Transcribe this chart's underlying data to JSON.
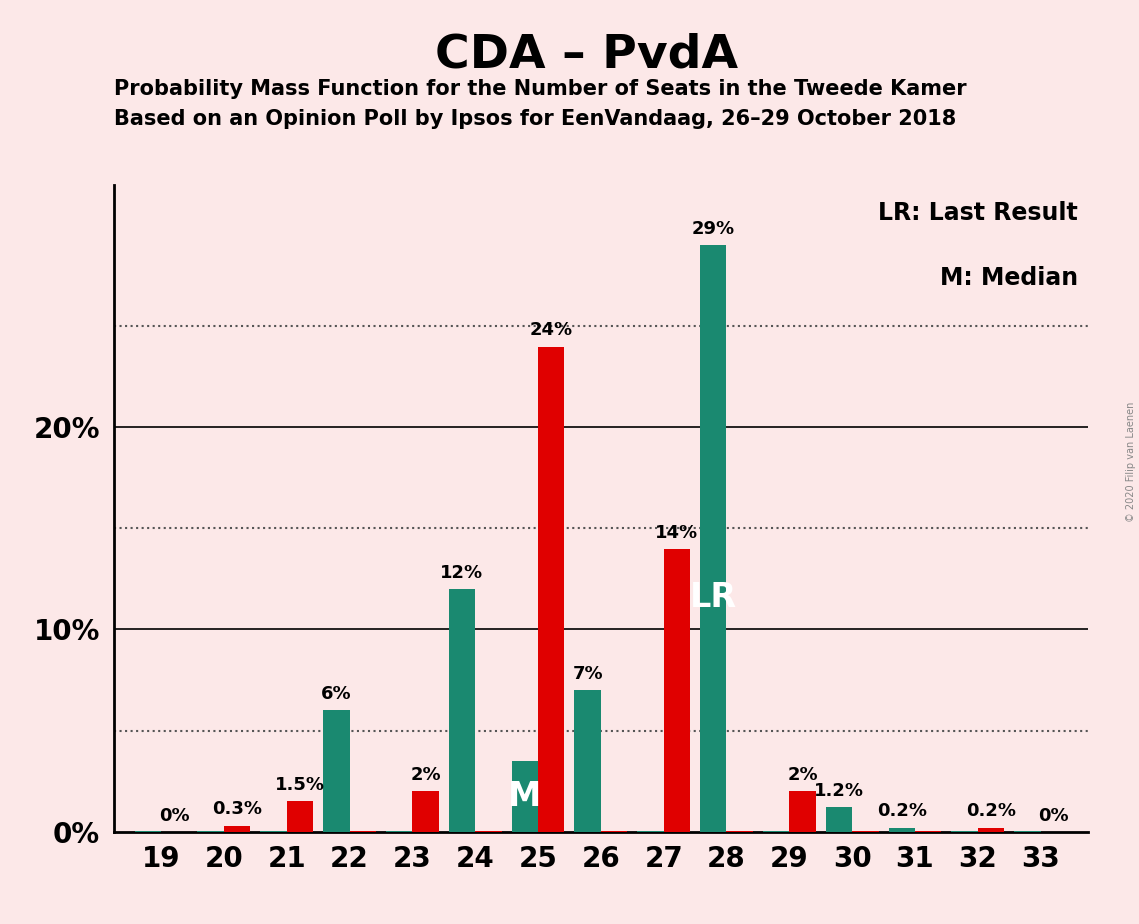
{
  "title": "CDA – PvdA",
  "subtitle1": "Probability Mass Function for the Number of Seats in the Tweede Kamer",
  "subtitle2": "Based on an Opinion Poll by Ipsos for EenVandaag, 26–29 October 2018",
  "copyright": "© 2020 Filip van Laenen",
  "legend_lr": "LR: Last Result",
  "legend_m": "M: Median",
  "background_color": "#fce8e8",
  "teal_color": "#1a8970",
  "red_color": "#e00000",
  "seats": [
    19,
    20,
    21,
    22,
    23,
    24,
    25,
    26,
    27,
    28,
    29,
    30,
    31,
    32,
    33
  ],
  "teal_values": [
    0.05,
    0.05,
    0.05,
    6.0,
    0.05,
    12.0,
    3.5,
    7.0,
    0.05,
    29.0,
    0.05,
    1.2,
    0.2,
    0.05,
    0.05
  ],
  "red_values": [
    0.0,
    0.3,
    1.5,
    0.05,
    2.0,
    0.05,
    24.0,
    0.05,
    14.0,
    0.05,
    2.0,
    0.05,
    0.05,
    0.2,
    0.0
  ],
  "teal_labels": [
    "",
    "",
    "",
    "6%",
    "",
    "12%",
    "",
    "7%",
    "",
    "29%",
    "",
    "1.2%",
    "0.2%",
    "",
    ""
  ],
  "red_labels": [
    "0%",
    "0.3%",
    "1.5%",
    "",
    "2%",
    "",
    "24%",
    "",
    "14%",
    "",
    "2%",
    "",
    "",
    "0.2%",
    "0%"
  ],
  "lr_seat": 28,
  "median_seat": 25,
  "ylim_max": 32,
  "bar_width": 0.42,
  "solid_grid": [
    10,
    20
  ],
  "dotted_grid": [
    5,
    15,
    25
  ],
  "ytick_positions": [
    0,
    10,
    20
  ],
  "ytick_labels": [
    "0%",
    "10%",
    "20%"
  ],
  "label_fontsize": 13,
  "axis_label_fontsize": 20,
  "legend_fontsize": 17,
  "title_fontsize": 34,
  "subtitle_fontsize": 15
}
